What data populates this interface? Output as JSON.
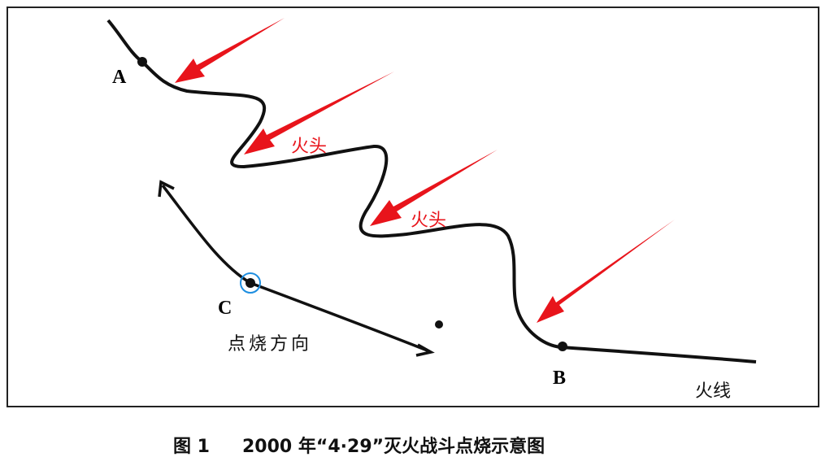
{
  "labels": {
    "a": "A",
    "b": "B",
    "c": "C",
    "ignition_direction": "点烧方向",
    "fire_line": "火线",
    "fire_head_1": "火头",
    "fire_head_2": "火头"
  },
  "caption": {
    "number": "图 1",
    "title": "2000 年“4·29”灭火战斗点烧示意图"
  }
}
